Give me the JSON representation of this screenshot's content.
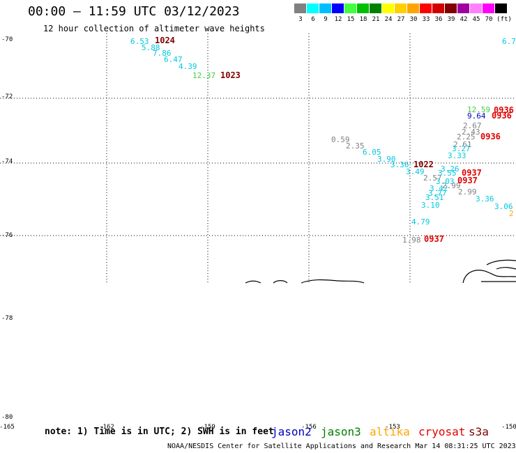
{
  "title": "00:00 – 11:59 UTC 03/12/2023",
  "subtitle": "12 hour collection of altimeter wave heights",
  "color_scale": {
    "colors": [
      "#808080",
      "#00ffff",
      "#00bfff",
      "#0000ff",
      "#40ff40",
      "#00c000",
      "#008000",
      "#ffff00",
      "#ffd000",
      "#ffa500",
      "#ff0000",
      "#d00000",
      "#800000",
      "#a000a0",
      "#ff80ff",
      "#ff00ff",
      "#000000"
    ],
    "labels": [
      "3",
      "6",
      "9",
      "12",
      "15",
      "18",
      "21",
      "24",
      "27",
      "30",
      "33",
      "36",
      "39",
      "42",
      "45",
      "70",
      "(ft)"
    ]
  },
  "lat_labels": [
    "-70",
    "-72",
    "-74",
    "-76",
    "-78",
    "-80"
  ],
  "lon_labels": [
    "-165",
    "-162",
    "-159",
    "-156",
    "-153",
    "-150"
  ],
  "wave_heights": [
    {
      "v": "6.53",
      "c": "#00c8e0"
    },
    {
      "v": "5.88",
      "c": "#00c8e0"
    },
    {
      "v": "7.86",
      "c": "#00c8e0"
    },
    {
      "v": "6.47",
      "c": "#00c8e0"
    },
    {
      "v": "4.39",
      "c": "#00c8e0"
    },
    {
      "v": "12.37",
      "c": "#40d040"
    },
    {
      "v": "0.59",
      "c": "#808080"
    },
    {
      "v": "2.35",
      "c": "#808080"
    },
    {
      "v": "6.05",
      "c": "#00c8e0"
    },
    {
      "v": "3.90",
      "c": "#00c8e0"
    },
    {
      "v": "3.36",
      "c": "#00c8e0"
    },
    {
      "v": "3.49",
      "c": "#00c8e0"
    },
    {
      "v": "12.59",
      "c": "#40d040"
    },
    {
      "v": "9.64",
      "c": "#0000c0"
    },
    {
      "v": "2.67",
      "c": "#808080"
    },
    {
      "v": "2.43",
      "c": "#808080"
    },
    {
      "v": "2.25",
      "c": "#808080"
    },
    {
      "v": "2.61",
      "c": "#808080"
    },
    {
      "v": "3.27",
      "c": "#00c8e0"
    },
    {
      "v": "3.33",
      "c": "#00c8e0"
    },
    {
      "v": "3.26",
      "c": "#00c8e0"
    },
    {
      "v": "3.55",
      "c": "#00c8e0"
    },
    {
      "v": "2.57",
      "c": "#808080"
    },
    {
      "v": "3.03",
      "c": "#00c8e0"
    },
    {
      "v": "2.99",
      "c": "#808080"
    },
    {
      "v": "3.42",
      "c": "#00c8e0"
    },
    {
      "v": "3.77",
      "c": "#00c8e0"
    },
    {
      "v": "3.51",
      "c": "#00c8e0"
    },
    {
      "v": "2.99",
      "c": "#808080"
    },
    {
      "v": "3.10",
      "c": "#00c8e0"
    },
    {
      "v": "3.36",
      "c": "#00c8e0"
    },
    {
      "v": "3.06",
      "c": "#00c8e0"
    },
    {
      "v": "4.79",
      "c": "#00c8e0"
    },
    {
      "v": "1.98",
      "c": "#808080"
    },
    {
      "v": "6.7",
      "c": "#00c8e0"
    },
    {
      "v": "2",
      "c": "#ffa500"
    }
  ],
  "time_labels": [
    {
      "v": "1024",
      "c": "#800000"
    },
    {
      "v": "1023",
      "c": "#800000"
    },
    {
      "v": "1022",
      "c": "#800000"
    },
    {
      "v": "0936",
      "c": "#e00000"
    },
    {
      "v": "0936",
      "c": "#e00000"
    },
    {
      "v": "0936",
      "c": "#e00000"
    },
    {
      "v": "0937",
      "c": "#e00000"
    },
    {
      "v": "0937",
      "c": "#e00000"
    },
    {
      "v": "0937",
      "c": "#e00000"
    }
  ],
  "note": "note: 1) Time is in UTC; 2) SWH is in feet",
  "satellites": [
    {
      "name": "jason2",
      "color": "#0000c0"
    },
    {
      "name": "jason3",
      "color": "#008000"
    },
    {
      "name": "altika",
      "color": "#ffa500"
    },
    {
      "name": "cryosat",
      "color": "#e00000"
    },
    {
      "name": "s3a",
      "color": "#800000"
    }
  ],
  "footer": "NOAA/NESDIS Center for Satellite Applications and Research   Mar 14 08:31:25 UTC 2023"
}
